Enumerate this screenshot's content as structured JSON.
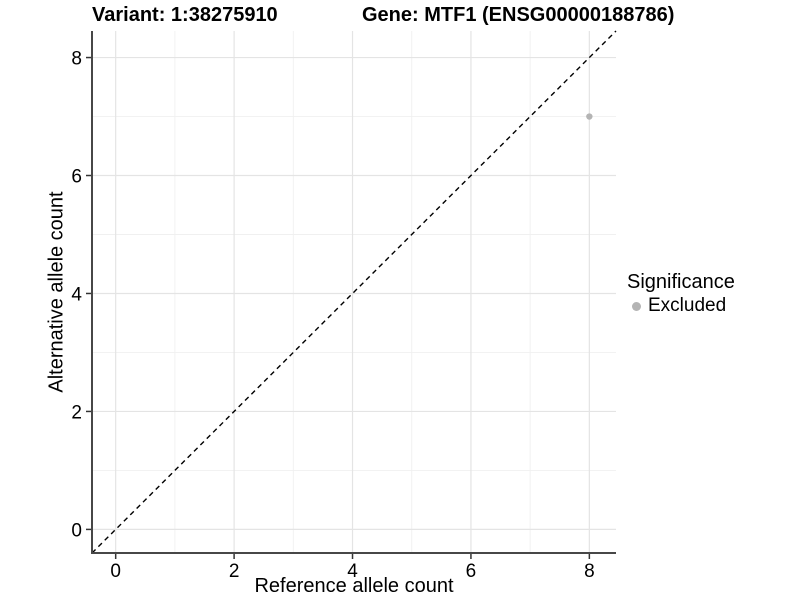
{
  "chart_data": {
    "type": "scatter",
    "title_left": "Variant: 1:38275910",
    "title_right": "Gene: MTF1 (ENSG00000188786)",
    "xlabel": "Reference allele count",
    "ylabel": "Alternative allele count",
    "xlim": [
      -0.4,
      8.45
    ],
    "ylim": [
      -0.4,
      8.45
    ],
    "x_ticks": [
      0,
      2,
      4,
      6,
      8
    ],
    "y_ticks": [
      0,
      2,
      4,
      6,
      8
    ],
    "x_minor": [
      1,
      3,
      5,
      7
    ],
    "y_minor": [
      1,
      3,
      5,
      7
    ],
    "grid": true,
    "points": [
      {
        "x": 8,
        "y": 7,
        "significance": "Excluded"
      }
    ],
    "reference_line": {
      "kind": "identity-diagonal",
      "style": "dashed"
    },
    "legend": {
      "position": "right",
      "title": "Significance",
      "items": [
        {
          "label": "Excluded",
          "color": "#b4b4b4"
        }
      ]
    },
    "colors": {
      "point": "#b4b4b4",
      "axis_line": "#474747",
      "tick_mark": "#333333",
      "grid_major": "#e4e4e4",
      "grid_minor": "#f0f0f0",
      "diagonal": "#000000",
      "text": "#000000",
      "background": "#ffffff"
    }
  }
}
